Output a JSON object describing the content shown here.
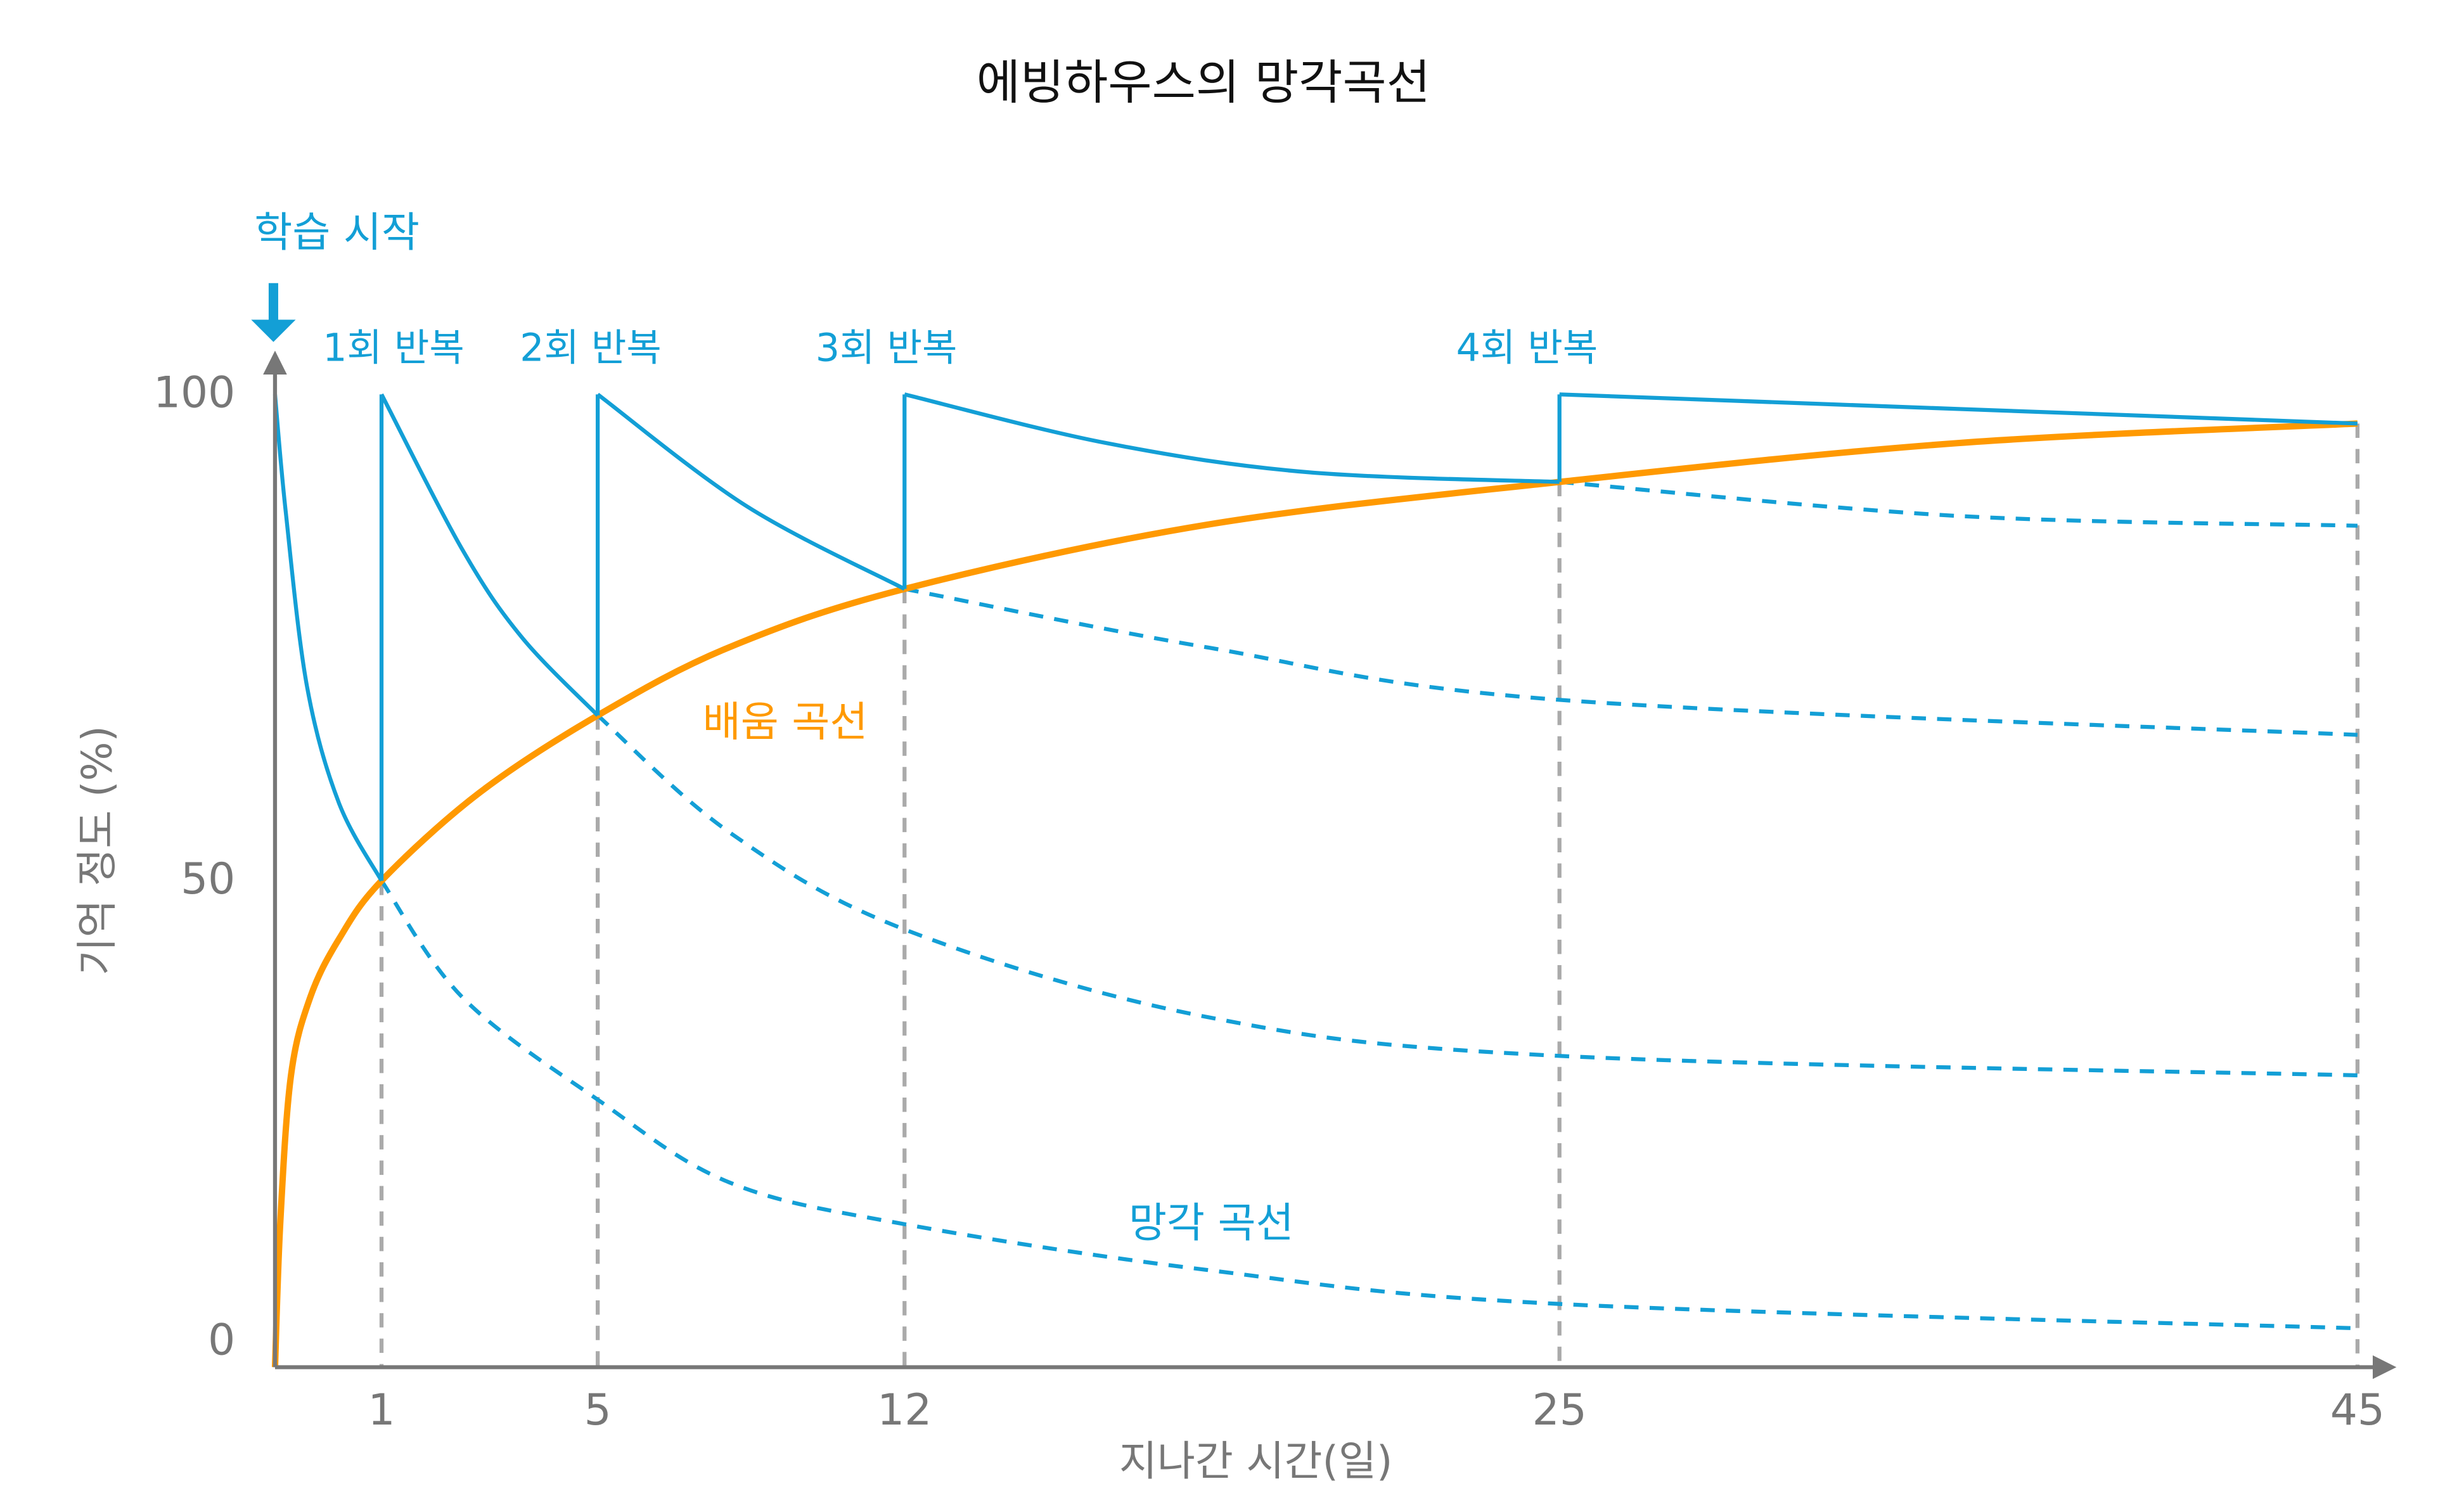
{
  "chart_data": {
    "type": "line",
    "title": "에빙하우스의 망각곡선",
    "xlabel": "지나간 시간(일)",
    "ylabel": "기억 정도 (%)",
    "x_ticks": [
      1,
      5,
      12,
      25,
      45
    ],
    "y_ticks": [
      0,
      50,
      100
    ],
    "ylim": [
      0,
      100
    ],
    "x_scale": "non-uniform (ticks evenly irregular)",
    "grid": false,
    "colors": {
      "forgetting": "#139fd6",
      "learning": "#ff9900",
      "axis": "#777777",
      "guide": "#aaaaaa"
    },
    "annotations": {
      "start": "학습 시작",
      "reviews": [
        "1회 반복",
        "2회 반복",
        "3회 반복",
        "4회 반복"
      ],
      "learning_label": "배움 곡선",
      "forgetting_label": "망각 곡선"
    },
    "learning_curve": [
      [
        0,
        0
      ],
      [
        0.05,
        15
      ],
      [
        0.15,
        30
      ],
      [
        0.33,
        38
      ],
      [
        0.6,
        44
      ],
      [
        1,
        50
      ],
      [
        2.8,
        59
      ],
      [
        5,
        67
      ],
      [
        8,
        74
      ],
      [
        12,
        80
      ],
      [
        18,
        86.6
      ],
      [
        25,
        91
      ],
      [
        35,
        95
      ],
      [
        45,
        97
      ]
    ],
    "forgetting_solid": [
      [
        [
          0,
          100
        ],
        [
          0.1,
          88
        ],
        [
          0.3,
          70
        ],
        [
          0.6,
          58
        ],
        [
          1,
          50
        ]
      ],
      [
        [
          1,
          100
        ],
        [
          2.5,
          84
        ],
        [
          3.6,
          75
        ],
        [
          5,
          67
        ]
      ],
      [
        [
          5,
          100
        ],
        [
          8.4,
          88.5
        ],
        [
          12,
          80
        ]
      ],
      [
        [
          12,
          100
        ],
        [
          16,
          95
        ],
        [
          20,
          92
        ],
        [
          25,
          91
        ]
      ],
      [
        [
          25,
          100
        ],
        [
          45,
          97
        ]
      ]
    ],
    "forgetting_dashed": [
      [
        [
          1,
          50
        ],
        [
          2.5,
          38
        ],
        [
          5,
          27.5
        ],
        [
          8,
          19
        ],
        [
          12,
          14.7
        ],
        [
          18,
          10
        ],
        [
          25,
          6.5
        ],
        [
          45,
          4
        ]
      ],
      [
        [
          5,
          67
        ],
        [
          8,
          55
        ],
        [
          12,
          45
        ],
        [
          18,
          36
        ],
        [
          25,
          32
        ],
        [
          45,
          30
        ]
      ],
      [
        [
          12,
          80
        ],
        [
          18,
          74
        ],
        [
          25,
          68.6
        ],
        [
          45,
          65
        ]
      ],
      [
        [
          25,
          91
        ],
        [
          35,
          87.5
        ],
        [
          45,
          86.5
        ]
      ]
    ]
  }
}
